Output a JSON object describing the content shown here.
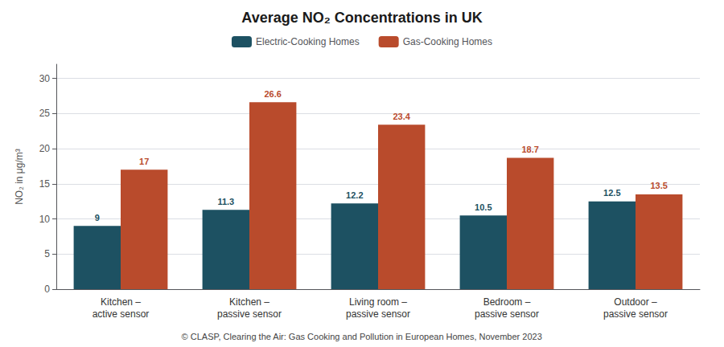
{
  "chart_data": {
    "type": "bar",
    "title": "Average NO₂ Concentrations in UK",
    "categories": [
      "Kitchen –\nactive sensor",
      "Kitchen –\npassive sensor",
      "Living room –\npassive sensor",
      "Bedroom –\npassive sensor",
      "Outdoor –\npassive sensor"
    ],
    "series": [
      {
        "name": "Electric-Cooking Homes",
        "color": "#1d5162",
        "values": [
          9,
          11.3,
          12.2,
          10.5,
          12.5
        ]
      },
      {
        "name": "Gas-Cooking Homes",
        "color": "#b94b2c",
        "values": [
          17,
          26.6,
          23.4,
          18.7,
          13.5
        ]
      }
    ],
    "ylabel": "NO₂ in μg/m³",
    "ylim": [
      0,
      32
    ],
    "yticks": [
      0,
      5,
      10,
      15,
      20,
      25,
      30
    ],
    "grid": true,
    "data_labels": true,
    "legend": "top",
    "caption": "© CLASP, Clearing the Air: Gas Cooking and Pollution in European Homes, November 2023"
  }
}
